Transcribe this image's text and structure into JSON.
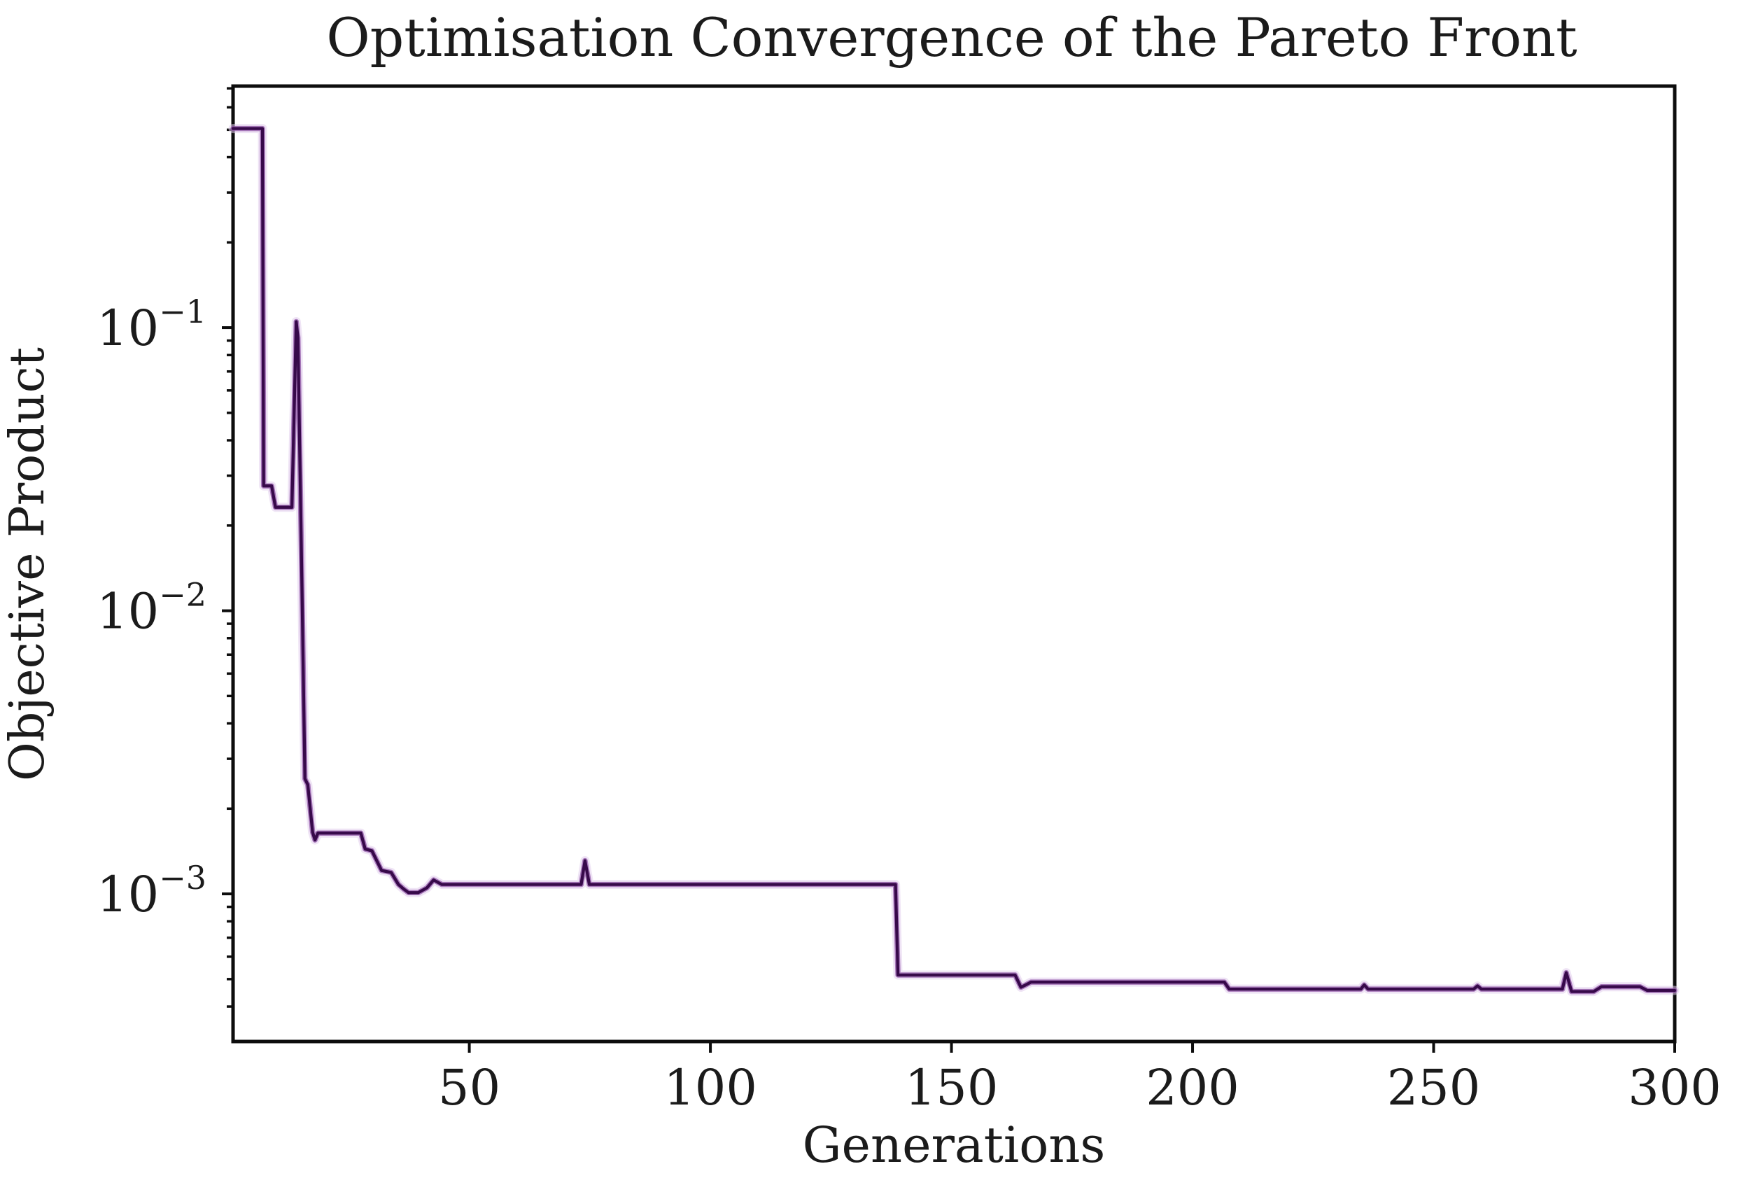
{
  "figure": {
    "background": "#ffffff"
  },
  "colors": {
    "line_core": "#37094a",
    "line_mid": "#9257a8",
    "line_halo": "#e2cdec",
    "spine": "#0d0d0d",
    "text": "#1b1b1b"
  },
  "chart_data": {
    "type": "line",
    "title": "Optimisation Convergence of the Pareto Front",
    "xlabel": "Generations",
    "ylabel": "Objective Product",
    "y_scale": "log",
    "grid": false,
    "legend": null,
    "xlim": [
      1,
      300
    ],
    "ylim": [
      0.000301,
      0.713
    ],
    "x_ticks": [
      {
        "label": "50",
        "value": 50
      },
      {
        "label": "100",
        "value": 100
      },
      {
        "label": "150",
        "value": 150
      },
      {
        "label": "200",
        "value": 200
      },
      {
        "label": "250",
        "value": 250
      },
      {
        "label": "300",
        "value": 300
      }
    ],
    "y_ticks": [
      {
        "base": "10",
        "exp": "−1",
        "value": 0.1
      },
      {
        "base": "10",
        "exp": "−2",
        "value": 0.01
      },
      {
        "base": "10",
        "exp": "−3",
        "value": 0.001
      }
    ],
    "series": [
      {
        "name": "objective-product",
        "color": "#37094a",
        "points": [
          [
            1,
            0.505
          ],
          [
            7.1,
            0.505
          ],
          [
            7.35,
            0.0276
          ],
          [
            9.0,
            0.0276
          ],
          [
            9.8,
            0.0232
          ],
          [
            13.2,
            0.0232
          ],
          [
            14.1,
            0.105
          ],
          [
            14.45,
            0.092
          ],
          [
            15.3,
            0.012
          ],
          [
            15.9,
            0.00255
          ],
          [
            16.5,
            0.00243
          ],
          [
            17.5,
            0.00165
          ],
          [
            18.0,
            0.00155
          ],
          [
            18.6,
            0.00164
          ],
          [
            27.5,
            0.00164
          ],
          [
            28.4,
            0.00144
          ],
          [
            29.8,
            0.00142
          ],
          [
            31.8,
            0.00121
          ],
          [
            33.8,
            0.00119
          ],
          [
            35.3,
            0.00108
          ],
          [
            36.4,
            0.00104
          ],
          [
            37.4,
            0.00101
          ],
          [
            39.4,
            0.00101
          ],
          [
            41.2,
            0.00105
          ],
          [
            42.6,
            0.00112
          ],
          [
            44.3,
            0.00108
          ],
          [
            73.2,
            0.00108
          ],
          [
            74.0,
            0.00131
          ],
          [
            74.9,
            0.00108
          ],
          [
            138.4,
            0.00108
          ],
          [
            138.9,
            0.000517
          ],
          [
            163.2,
            0.000517
          ],
          [
            164.4,
            0.000468
          ],
          [
            165.4,
            0.000477
          ],
          [
            166.5,
            0.000488
          ],
          [
            206.6,
            0.000488
          ],
          [
            207.6,
            0.000461
          ],
          [
            234.9,
            0.000461
          ],
          [
            235.6,
            0.000477
          ],
          [
            236.4,
            0.000461
          ],
          [
            258.3,
            0.000461
          ],
          [
            259.1,
            0.000473
          ],
          [
            259.9,
            0.000461
          ],
          [
            276.7,
            0.000461
          ],
          [
            277.5,
            0.000527
          ],
          [
            278.6,
            0.000452
          ],
          [
            283.2,
            0.000452
          ],
          [
            284.8,
            0.00047
          ],
          [
            292.8,
            0.00047
          ],
          [
            294.3,
            0.000456
          ],
          [
            300,
            0.000456
          ]
        ]
      }
    ]
  }
}
